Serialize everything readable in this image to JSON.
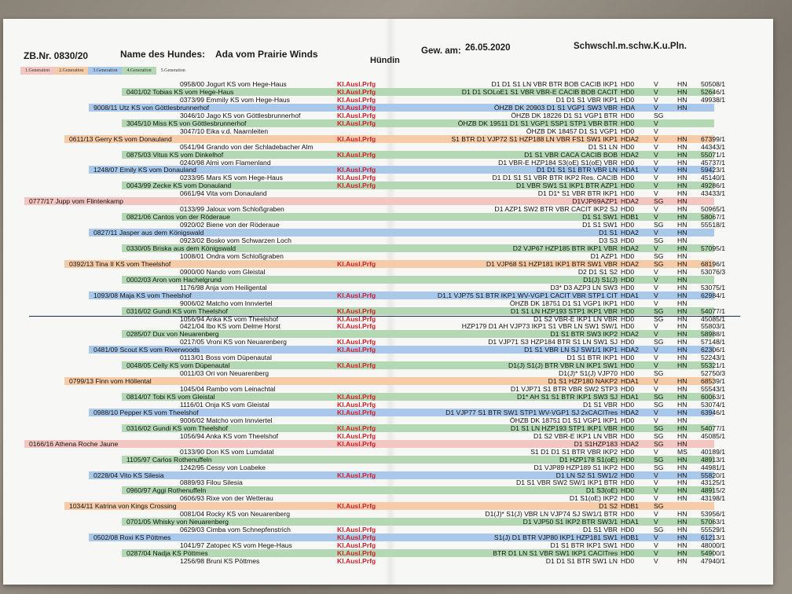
{
  "header": {
    "zb_nr": "ZB.Nr. 0830/20",
    "name_label": "Name des Hundes:",
    "dog_name": "Ada vom Prairie Winds",
    "sex": "Hündin",
    "born_label": "Gew. am:",
    "born_date": "26.05.2020",
    "color": "Schwschl.m.schw.K.u.Pln."
  },
  "legend": [
    {
      "label": "1.Generation",
      "color": "#f3c6c2"
    },
    {
      "label": "2.Generation",
      "color": "#f6cba8"
    },
    {
      "label": "3.Generation",
      "color": "#a9c8ea"
    },
    {
      "label": "4.Generation",
      "color": "#b3d8b3"
    },
    {
      "label": "5.Generation",
      "color": "#f7f7f5"
    }
  ],
  "kl_label": "Kl.Ausl.Prfg",
  "rows": [
    {
      "gen": 5,
      "name": "0958/00 Jogurt KS vom Hege-Haus",
      "kl": true,
      "titles": "D1 D1 S1 LN  VBR BTR BOB CACIB IKP1",
      "hd": "HD0",
      "form": "V",
      "hn": "HN",
      "nr": "50508/1"
    },
    {
      "gen": 4,
      "name": "0401/02 Tobias KS vom Hege-Haus",
      "kl": true,
      "titles": "D1 D1 SOLoE1 S1 VBR VBR-E CACIB BOB CACIT",
      "hd": "HD0",
      "form": "V",
      "hn": "HN",
      "nr": "52646/1"
    },
    {
      "gen": 5,
      "name": "0373/99 Emmily KS vom Hege-Haus",
      "kl": true,
      "titles": "D1 D1 S1 VBR IKP1",
      "hd": "HD0",
      "form": "V",
      "hn": "HN",
      "nr": "49938/1"
    },
    {
      "gen": 3,
      "name": "9008/11 Utz KS von Göttlesbrunnerhof",
      "kl": true,
      "titles": "ÖHZB DK 20903 D1 S1 VGP1 SW3 VBR",
      "hd": "HDA",
      "form": "V",
      "hn": "HN",
      "nr": ""
    },
    {
      "gen": 5,
      "name": "3046/10 Jago KS von Göttlesbrunnerhof",
      "kl": true,
      "titles": "ÖHZB DK 18226 D1 S1 VGP1 BTR",
      "hd": "HD0",
      "form": "SG",
      "hn": "",
      "nr": ""
    },
    {
      "gen": 4,
      "name": "3045/10 Miss KS von Göttlesbrunnerhof",
      "kl": true,
      "titles": "ÖHZB DK 19511 D1 S1 VGP1 SSP1 STP1 VBR BTR",
      "hd": "HD0",
      "form": "V",
      "hn": "",
      "nr": ""
    },
    {
      "gen": 5,
      "name": "3047/10 Eika v.d. Naarnleiten",
      "kl": false,
      "titles": "ÖHZB DK 18457 D1 S1 VGP1",
      "hd": "HD0",
      "form": "V",
      "hn": "",
      "nr": ""
    },
    {
      "gen": 2,
      "name": "0611/13 Gerry KS vom Donauland",
      "kl": true,
      "titles": "S1 BTR D1 VJP72 S1 HZP188 LN VBR FS1 SW1 IKP1",
      "hd": "HDA2",
      "form": "V",
      "hn": "HN",
      "nr": "67399/1"
    },
    {
      "gen": 5,
      "name": "0541/94 Grando von der Schladebacher Alm",
      "kl": false,
      "titles": "D1 S1 LN",
      "hd": "HD0",
      "form": "V",
      "hn": "HN",
      "nr": "44343/1"
    },
    {
      "gen": 4,
      "name": "0875/03 Vitus KS vom Dinkelhof",
      "kl": true,
      "titles": "D1 S1 VBR CACA CACIB BOB",
      "hd": "HDA2",
      "form": "V",
      "hn": "HN",
      "nr": "55071/1"
    },
    {
      "gen": 5,
      "name": "0240/98 Almi vom Flamenland",
      "kl": false,
      "titles": "D1 VBR-E HZP184 S3(oE) S1(oE) VBR",
      "hd": "HD0",
      "form": "V",
      "hn": "HN",
      "nr": "45737/1"
    },
    {
      "gen": 3,
      "name": "1248/07 Emily KS vom Donauland",
      "kl": true,
      "titles": "D1 D1 S1 S1 BTR VBR LN",
      "hd": "HDA1",
      "form": "V",
      "hn": "HN",
      "nr": "59423/1"
    },
    {
      "gen": 5,
      "name": "0233/95 Mars KS vom Hege-Haus",
      "kl": true,
      "titles": "D1 D1 S1 S1 VBR BTR IKP2 Res. CACIB",
      "hd": "HD0",
      "form": "V",
      "hn": "HN",
      "nr": "45140/1"
    },
    {
      "gen": 4,
      "name": "0043/99 Zecke KS vom Donauland",
      "kl": true,
      "titles": "D1 VBR SW1 S1 IKP1 BTR AZP1",
      "hd": "HD0",
      "form": "V",
      "hn": "HN",
      "nr": "49286/1"
    },
    {
      "gen": 5,
      "name": "0661/94 Vita vom Donauland",
      "kl": false,
      "titles": "D1 D1* S1 VBR BTR IKP1",
      "hd": "HD0",
      "form": "V",
      "hn": "HN",
      "nr": "43433/1"
    },
    {
      "gen": 1,
      "name": "0777/17 Jupp vom Flintenkamp",
      "kl": false,
      "titles": "D1VJP69AZP1",
      "hd": "HDA2",
      "form": "SG",
      "hn": "HN",
      "nr": ""
    },
    {
      "gen": 5,
      "name": "0133/99 Jaloux vom Schloßgraben",
      "kl": false,
      "titles": "D1 AZP1 SW2 BTR VBR CACIT IKP2 SJ",
      "hd": "HD0",
      "form": "V",
      "hn": "HN",
      "nr": "50965/1"
    },
    {
      "gen": 4,
      "name": "0821/06 Cantos von der Röderaue",
      "kl": false,
      "titles": "D1 S1 SW1",
      "hd": "HDB1",
      "form": "V",
      "hn": "HN",
      "nr": "58067/1"
    },
    {
      "gen": 5,
      "name": "0920/02 Biene von der Röderaue",
      "kl": false,
      "titles": "D1 S1 SW1",
      "hd": "HD0",
      "form": "SG",
      "hn": "HN",
      "nr": "55518/1"
    },
    {
      "gen": 3,
      "name": "0827/11 Jasper aus dem Königswald",
      "kl": false,
      "titles": "D1 S1",
      "hd": "HDA2",
      "form": "V",
      "hn": "HN",
      "nr": ""
    },
    {
      "gen": 5,
      "name": "0923/02 Bosko vom Schwarzen Loch",
      "kl": false,
      "titles": "D3 S3",
      "hd": "HD0",
      "form": "SG",
      "hn": "HN",
      "nr": ""
    },
    {
      "gen": 4,
      "name": "0330/05 Briska aus dem Königswald",
      "kl": false,
      "titles": "D2 VJP67 HZP185 BTR IKP1 VBR",
      "hd": "HDA2",
      "form": "V",
      "hn": "HN",
      "nr": "57095/1"
    },
    {
      "gen": 5,
      "name": "1008/01 Ondra vom Schloßgraben",
      "kl": false,
      "titles": "D1 AZP1",
      "hd": "HD0",
      "form": "SG",
      "hn": "HN",
      "nr": ""
    },
    {
      "gen": 2,
      "name": "0392/13 Tina II KS vom Theelshof",
      "kl": true,
      "titles": "D1 VJP68 S1 HZP181 IKP1 BTR SW1 VBR",
      "hd": "HDA2",
      "form": "SG",
      "hn": "HN",
      "nr": "68196/1"
    },
    {
      "gen": 5,
      "name": "0900/00 Nando vom Gleistal",
      "kl": false,
      "titles": "D2 D1 S1 S2",
      "hd": "HD0",
      "form": "V",
      "hn": "HN",
      "nr": "53076/3"
    },
    {
      "gen": 4,
      "name": "0002/03 Aron vom Hachelgrund",
      "kl": false,
      "titles": "D1(J) S1(J)",
      "hd": "HD0",
      "form": "V",
      "hn": "HN",
      "nr": ""
    },
    {
      "gen": 5,
      "name": "1176/98 Anja vom Heiligental",
      "kl": false,
      "titles": "D3* D3  AZP3 LN SW3",
      "hd": "HD0",
      "form": "V",
      "hn": "HN",
      "nr": "53075/1"
    },
    {
      "gen": 3,
      "name": "1093/08 Maja KS vom Theelshof",
      "kl": true,
      "titles": "D1,1 VJP75 S1 BTR IKP1 WV-VGP1 CACIT VBR STP1 CIT",
      "hd": "HDA1",
      "form": "V",
      "hn": "HN",
      "nr": "62984/1"
    },
    {
      "gen": 5,
      "name": "9006/02 Matcho vom Innviertel",
      "kl": false,
      "titles": "ÖHZB DK 18751 D1 S1 VGP1 IKP1",
      "hd": "HD0",
      "form": "V",
      "hn": "HN",
      "nr": ""
    },
    {
      "gen": 4,
      "name": "0316/02 Gundi KS vom Theelshof",
      "kl": true,
      "titles": "D1 S1 LN HZP193 STP1 IKP1 VBR",
      "hd": "HD0",
      "form": "SG",
      "hn": "HN",
      "nr": "54077/1"
    },
    {
      "gen": 5,
      "name": "1056/94 Anka KS vom Theelshof",
      "kl": true,
      "titles": "D1 S2 VBR-E IKP1 LN VBR",
      "hd": "HD0",
      "form": "SG",
      "hn": "HN",
      "nr": "45085/1"
    },
    {
      "gen": 5,
      "name": "0421/04 Ibo KS vom Delme Horst",
      "kl": true,
      "titles": "HZP179 D1 AH VJP73 IKP1 S1 VBR LN SW1 SW/1",
      "hd": "HD0",
      "form": "V",
      "hn": "HN",
      "nr": "55803/1"
    },
    {
      "gen": 4,
      "name": "0285/07 Dux von Neuarenberg",
      "kl": false,
      "titles": "D1 S1 BTR SW3 IKP2",
      "hd": "HDA2",
      "form": "V",
      "hn": "HN",
      "nr": "58988/1"
    },
    {
      "gen": 5,
      "name": "0217/05 Vroni KS von Neuarenberg",
      "kl": true,
      "titles": "D1 VJP71 S3 HZP184 BTR S1 LN SW1 SJ",
      "hd": "HD0",
      "form": "SG",
      "hn": "HN",
      "nr": "57148/1"
    },
    {
      "gen": 3,
      "name": "0481/09 Scout KS vom Riverwoods",
      "kl": true,
      "titles": "D1 S1 VBR LN SJ SW1/1 IKP1",
      "hd": "HDA2",
      "form": "V",
      "hn": "HN",
      "nr": "62306/1"
    },
    {
      "gen": 5,
      "name": "0113/01 Boss vom Düpenautal",
      "kl": false,
      "titles": "D1 S1 BTR IKP1",
      "hd": "HD0",
      "form": "V",
      "hn": "HN",
      "nr": "52243/1"
    },
    {
      "gen": 4,
      "name": "0048/05 Celly KS vom Düpenautal",
      "kl": true,
      "titles": "D1(J) S1(J) BTR VBR LN IKP1 SW1",
      "hd": "HD0",
      "form": "V",
      "hn": "HN",
      "nr": "55321/1"
    },
    {
      "gen": 5,
      "name": "0011/03 Ori von Neuarenberg",
      "kl": false,
      "titles": "D1(J)* S1(J) VJP70",
      "hd": "HD0",
      "form": "SG",
      "hn": "",
      "nr": "52750/3"
    },
    {
      "gen": 2,
      "name": "0799/13 Finn vom Höllental",
      "kl": false,
      "titles": "D1 S1 HZP180 NAKP2",
      "hd": "HDA1",
      "form": "V",
      "hn": "HN",
      "nr": "68539/1"
    },
    {
      "gen": 5,
      "name": "1045/04 Rambo vom Leinachtal",
      "kl": false,
      "titles": "D1 VJP71 S1 BTR VBR SW2 STP3",
      "hd": "HD0",
      "form": "V",
      "hn": "HN",
      "nr": "55543/1"
    },
    {
      "gen": 4,
      "name": "0814/07 Tobi KS vom Gleistal",
      "kl": true,
      "titles": "D1* AH S1 S1 BTR IKP1 SW3 SJ",
      "hd": "HDA1",
      "form": "SG",
      "hn": "HN",
      "nr": "60063/1"
    },
    {
      "gen": 5,
      "name": "1116/01 Onja KS vom Gleistal",
      "kl": true,
      "titles": "D1 S1 VBR",
      "hd": "HD0",
      "form": "SG",
      "hn": "HN",
      "nr": "53074/1"
    },
    {
      "gen": 3,
      "name": "0988/10 Pepper KS vom Theelshof",
      "kl": true,
      "titles": "D1 VJP77 S1 BTR SW1 STP1 WV-VGP1 SJ 2xCACITres",
      "hd": "HDA2",
      "form": "V",
      "hn": "HN",
      "nr": "63946/1"
    },
    {
      "gen": 5,
      "name": "9006/02 Matcho vom Innviertel",
      "kl": false,
      "titles": "ÖHZB DK 18751 D1 S1 VGP1 IKP1",
      "hd": "HD0",
      "form": "V",
      "hn": "HN",
      "nr": ""
    },
    {
      "gen": 4,
      "name": "0316/02 Gundi KS vom Theelshof",
      "kl": true,
      "titles": "D1 S1 LN HZP193 STP1 IKP1 VBR",
      "hd": "HD0",
      "form": "SG",
      "hn": "HN",
      "nr": "54077/1"
    },
    {
      "gen": 5,
      "name": "1056/94 Anka KS vom Theelshof",
      "kl": true,
      "titles": "D1 S2 VBR-E IKP1 LN VBR",
      "hd": "HD0",
      "form": "SG",
      "hn": "HN",
      "nr": "45085/1"
    },
    {
      "gen": 1,
      "name": "0166/16 Athena Roche Jaune",
      "kl": true,
      "titles": "D1 S1HZP183",
      "hd": "HDA2",
      "form": "SG",
      "hn": "HN",
      "nr": ""
    },
    {
      "gen": 5,
      "name": "0133/90 Don KS vom Lumdatal",
      "kl": false,
      "titles": "S1 D1 D1 S1 BTR VBR IKP2",
      "hd": "HD0",
      "form": "V",
      "hn": "MS",
      "nr": "40189/1"
    },
    {
      "gen": 4,
      "name": "1105/97 Carlos  Rothenuffeln",
      "kl": false,
      "titles": "D1 HZP178 S1(oE)",
      "hd": "HD0",
      "form": "SG",
      "hn": "HN",
      "nr": "48913/1"
    },
    {
      "gen": 5,
      "name": "1242/95 Cessy von Loabeke",
      "kl": false,
      "titles": "D1 VJP89 HZP189 S1 IKP2",
      "hd": "HD0",
      "form": "SG",
      "hn": "HN",
      "nr": "44981/1"
    },
    {
      "gen": 3,
      "name": "0228/04 Vito KS  Silesia",
      "kl": true,
      "titles": "D1 LN S2 S1 SW1/2",
      "hd": "HD0",
      "form": "V",
      "hn": "HN",
      "nr": "55820/1"
    },
    {
      "gen": 5,
      "name": "0889/93 Filou  Silesia",
      "kl": false,
      "titles": "D1 S1 VBR SW2 SW/1 IKP1 BTR",
      "hd": "HD0",
      "form": "V",
      "hn": "HN",
      "nr": "43125/1"
    },
    {
      "gen": 4,
      "name": "0960/97 Aggi  Rothenuffeln",
      "kl": false,
      "titles": "D1 S3(oE)",
      "hd": "HD0",
      "form": "V",
      "hn": "HN",
      "nr": "48915/2"
    },
    {
      "gen": 5,
      "name": "0606/93 Rixe von der Wetterau",
      "kl": false,
      "titles": "D1 S1(oE) IKP2",
      "hd": "HD0",
      "form": "V",
      "hn": "HN",
      "nr": "43198/1"
    },
    {
      "gen": 2,
      "name": "1034/11 Katrina von Kings Crossing",
      "kl": true,
      "titles": "D1 S2",
      "hd": "HDB1",
      "form": "SG",
      "hn": "",
      "nr": ""
    },
    {
      "gen": 5,
      "name": "0081/04 Rocky KS von Neuarenberg",
      "kl": false,
      "titles": "D1(J)* S1(J) VBR LN VJP74 SJ SW1/1 BTR",
      "hd": "HD0",
      "form": "V",
      "hn": "HN",
      "nr": "53956/1"
    },
    {
      "gen": 4,
      "name": "0701/05 Whisky von Neuarenberg",
      "kl": false,
      "titles": "D1 VJP50 S1 IKP2 BTR SW3/1",
      "hd": "HDA1",
      "form": "V",
      "hn": "HN",
      "nr": "57063/1"
    },
    {
      "gen": 5,
      "name": "0629/03 Cimba vom Schnepfenstrich",
      "kl": true,
      "titles": "D1 S1 VBR",
      "hd": "HD0",
      "form": "SG",
      "hn": "HN",
      "nr": "55529/1"
    },
    {
      "gen": 3,
      "name": "0502/08 Roxi KS  Pöttmes",
      "kl": true,
      "titles": "S1(J) D1 BTR VJP80 IKP1 HZP181 SW1",
      "hd": "HDB1",
      "form": "V",
      "hn": "HN",
      "nr": "61213/1"
    },
    {
      "gen": 5,
      "name": "1041/97 Zatopec KS vom Hege-Haus",
      "kl": true,
      "titles": "D1 S1 BTR  IKP1 SW1",
      "hd": "HD0",
      "form": "V",
      "hn": "HN",
      "nr": "48000/1"
    },
    {
      "gen": 4,
      "name": "0287/04 Nadja KS  Pöttmes",
      "kl": true,
      "titles": "BTR D1 LN S1 VBR SW1 IKP1 CACITres",
      "hd": "HD0",
      "form": "V",
      "hn": "HN",
      "nr": "54900/1"
    },
    {
      "gen": 5,
      "name": "1256/98 Bruni KS  Pöttmes",
      "kl": true,
      "titles": "D1 D1 S1 BTR SW1 LN",
      "hd": "HD0",
      "form": "V",
      "hn": "HN",
      "nr": "47940/1"
    }
  ]
}
